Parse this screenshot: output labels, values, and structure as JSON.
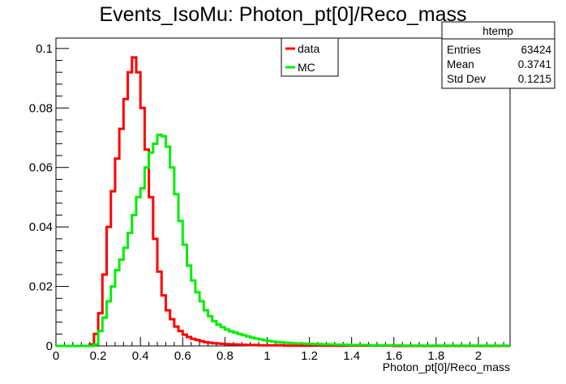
{
  "chart_data": {
    "type": "line",
    "title": "Events_IsoMu: Photon_pt[0]/Reco_mass",
    "xlabel": "Photon_pt[0]/Reco_mass",
    "ylabel": "",
    "xlim": [
      0,
      2.15
    ],
    "ylim": [
      0,
      0.1035
    ],
    "bin_width": 0.02,
    "x_ticks": [
      "0",
      "0.2",
      "0.4",
      "0.6",
      "0.8",
      "1",
      "1.2",
      "1.4",
      "1.6",
      "1.8",
      "2"
    ],
    "x_tick_values": [
      0,
      0.2,
      0.4,
      0.6,
      0.8,
      1.0,
      1.2,
      1.4,
      1.6,
      1.8,
      2.0
    ],
    "y_ticks": [
      "0",
      "0.02",
      "0.04",
      "0.06",
      "0.08",
      "0.1"
    ],
    "y_tick_values": [
      0,
      0.02,
      0.04,
      0.06,
      0.08,
      0.1
    ],
    "grid": false,
    "legend_position": "top-center",
    "series": [
      {
        "name": "data",
        "color": "#ff0000",
        "x_start": 0,
        "values": [
          0,
          0,
          0,
          0,
          0,
          0,
          0,
          0,
          0.0005,
          0.004,
          0.011,
          0.024,
          0.04,
          0.052,
          0.063,
          0.073,
          0.083,
          0.092,
          0.097,
          0.092,
          0.08,
          0.066,
          0.05,
          0.036,
          0.025,
          0.017,
          0.012,
          0.009,
          0.0065,
          0.005,
          0.0038,
          0.003,
          0.0024,
          0.002,
          0.0016,
          0.0013,
          0.0011,
          0.0009,
          0.0008,
          0.0007,
          0.0006,
          0.0005,
          0.0005,
          0.0004,
          0.0004,
          0.0003,
          0.0003,
          0.0003,
          0.0002,
          0.0002,
          0.0002,
          0.0002,
          0.0002,
          0.0002,
          0.0001,
          0.0001,
          0.0001,
          0.0001,
          0.0001,
          0.0001,
          0.0001,
          0.0001,
          0.0001,
          0.0001,
          0.0001,
          0.0001,
          0.0001,
          0.0001,
          0.0001,
          0.0001,
          0.0001,
          0.0001,
          0.0001,
          0.0001,
          0.0001,
          0.0001,
          0.0001,
          0.0001,
          0.0001,
          0.0001,
          0,
          0,
          0,
          0,
          0,
          0,
          0,
          0,
          0,
          0,
          0,
          0,
          0,
          0,
          0,
          0,
          0,
          0,
          0,
          0,
          0,
          0,
          0,
          0,
          0,
          0,
          0,
          0
        ]
      },
      {
        "name": "MC",
        "color": "#00ee00",
        "x_start": 0,
        "values": [
          0,
          0,
          0,
          0,
          0,
          0,
          0,
          0,
          0,
          0.0005,
          0.005,
          0.0095,
          0.015,
          0.02,
          0.0255,
          0.029,
          0.033,
          0.038,
          0.044,
          0.05,
          0.053,
          0.06,
          0.065,
          0.068,
          0.071,
          0.0705,
          0.067,
          0.06,
          0.051,
          0.042,
          0.034,
          0.027,
          0.022,
          0.018,
          0.015,
          0.012,
          0.01,
          0.0083,
          0.0072,
          0.0063,
          0.0055,
          0.0049,
          0.0045,
          0.004,
          0.0036,
          0.0032,
          0.0028,
          0.0025,
          0.0022,
          0.0019,
          0.0017,
          0.0015,
          0.0013,
          0.0012,
          0.0011,
          0.001,
          0.0009,
          0.0008,
          0.0008,
          0.0007,
          0.0007,
          0.0006,
          0.0006,
          0.0005,
          0.0005,
          0.0005,
          0.0004,
          0.0004,
          0.0004,
          0.0003,
          0.0003,
          0.0003,
          0.0003,
          0.0003,
          0.0002,
          0.0002,
          0.0002,
          0.0002,
          0.0002,
          0.0002,
          0.0002,
          0.0002,
          0.0001,
          0.0001,
          0.0001,
          0.0001,
          0.0001,
          0.0001,
          0.0001,
          0.0001,
          0.0001,
          0.0001,
          0.0001,
          0.0001,
          0.0001,
          0.0001,
          0.0001,
          0.0001,
          0.0001,
          0.0001,
          0.0001,
          0.0001,
          0.0001,
          0.0001,
          0.0001,
          0.0001,
          0.0001,
          0.0001
        ]
      }
    ],
    "stats_box": {
      "title": "htemp",
      "rows": [
        {
          "label": "Entries",
          "value": "63424"
        },
        {
          "label": "Mean",
          "value": "0.3741"
        },
        {
          "label": "Std Dev",
          "value": "0.1215"
        }
      ]
    }
  }
}
